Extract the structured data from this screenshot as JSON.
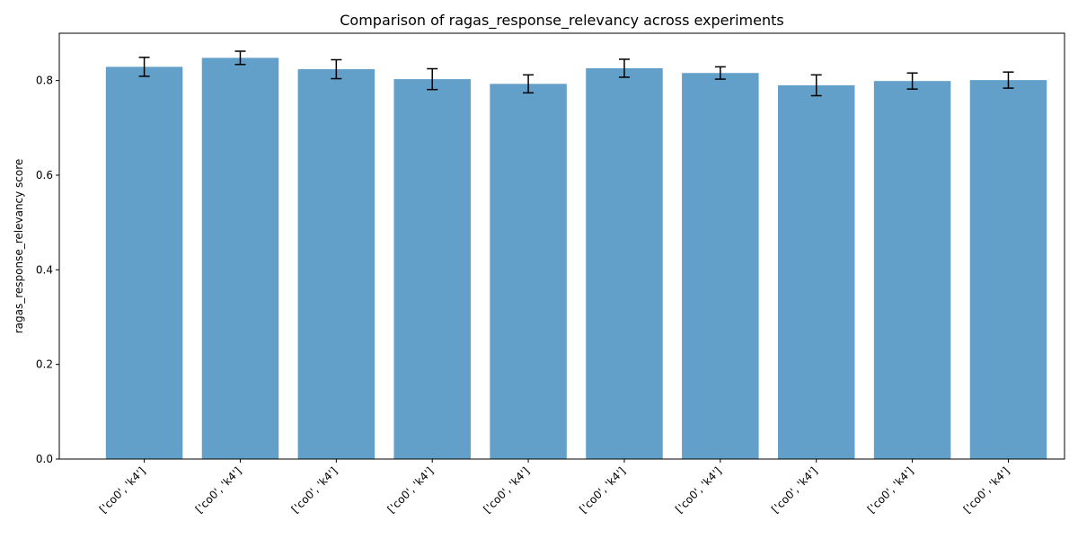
{
  "chart_data": {
    "type": "bar",
    "title": "Comparison of ragas_response_relevancy across experiments",
    "xlabel": "",
    "ylabel": "ragas_response_relevancy score",
    "categories": [
      "['co0', 'k4']",
      "['co0', 'k4']",
      "['co0', 'k4']",
      "['co0', 'k4']",
      "['co0', 'k4']",
      "['co0', 'k4']",
      "['co0', 'k4']",
      "['co0', 'k4']",
      "['co0', 'k4']",
      "['co0', 'k4']"
    ],
    "values": [
      0.829,
      0.848,
      0.824,
      0.803,
      0.793,
      0.826,
      0.816,
      0.79,
      0.799,
      0.801
    ],
    "errors": [
      0.02,
      0.014,
      0.02,
      0.022,
      0.019,
      0.019,
      0.013,
      0.022,
      0.017,
      0.017
    ],
    "ylim": [
      0,
      0.9
    ],
    "yticks": [
      0.0,
      0.2,
      0.4,
      0.6,
      0.8
    ],
    "ytick_labels": [
      "0.0",
      "0.2",
      "0.4",
      "0.6",
      "0.8"
    ],
    "grid": false,
    "bar_color": "#1f77b4",
    "bar_alpha": 0.7,
    "error_color": "#000000"
  }
}
